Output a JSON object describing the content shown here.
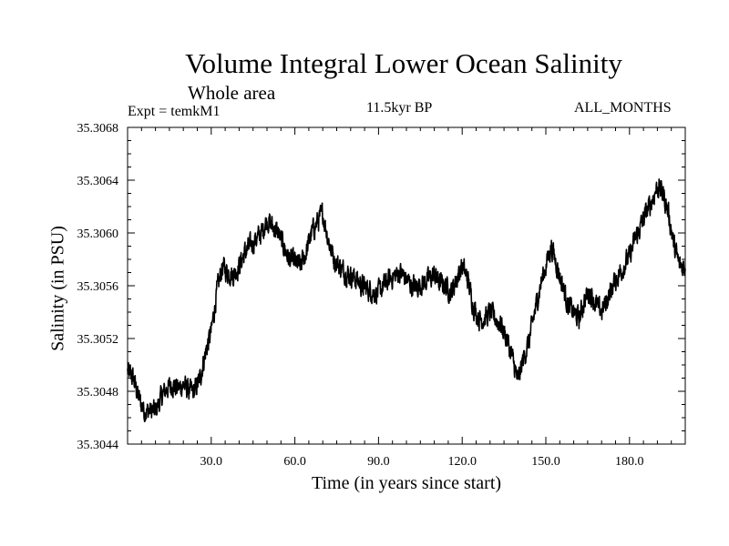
{
  "chart_data": {
    "type": "line",
    "title": "Volume Integral Lower Ocean Salinity",
    "subtitle": "Whole area",
    "experiment_label": "Expt = temkM1",
    "period_label": "11.5kyr BP",
    "months_label": "ALL_MONTHS",
    "xlabel": "Time (in years since start)",
    "ylabel": "Salinity (in PSU)",
    "xlim": [
      0,
      200
    ],
    "ylim": [
      35.3044,
      35.3068
    ],
    "x_ticks": [
      30,
      60,
      90,
      120,
      150,
      180
    ],
    "x_tick_labels": [
      "30.0",
      "60.0",
      "90.0",
      "120.0",
      "150.0",
      "180.0"
    ],
    "y_ticks": [
      35.3044,
      35.3048,
      35.3052,
      35.3056,
      35.306,
      35.3064,
      35.3068
    ],
    "y_tick_labels": [
      "35.3044",
      "35.3048",
      "35.3052",
      "35.3056",
      "35.3060",
      "35.3064",
      "35.3068"
    ],
    "grid": false,
    "noise_amplitude": 0.00014,
    "series": [
      {
        "name": "Lower ocean salinity",
        "x": [
          0,
          2,
          4,
          6,
          8,
          10,
          12,
          14,
          16,
          18,
          20,
          22,
          24,
          26,
          28,
          30,
          32,
          34,
          36,
          38,
          40,
          42,
          44,
          46,
          48,
          50,
          52,
          54,
          56,
          58,
          60,
          62,
          64,
          66,
          68,
          70,
          72,
          74,
          76,
          78,
          80,
          82,
          84,
          86,
          88,
          90,
          92,
          94,
          96,
          98,
          100,
          102,
          104,
          106,
          108,
          110,
          112,
          114,
          116,
          118,
          120,
          122,
          124,
          126,
          128,
          130,
          132,
          134,
          136,
          138,
          140,
          142,
          144,
          146,
          148,
          150,
          152,
          154,
          156,
          158,
          160,
          162,
          164,
          166,
          168,
          170,
          172,
          174,
          176,
          178,
          180,
          182,
          184,
          186,
          188,
          190,
          192,
          194,
          196,
          198,
          200
        ],
        "values": [
          35.30495,
          35.3049,
          35.30475,
          35.30465,
          35.30465,
          35.30465,
          35.30475,
          35.30482,
          35.30485,
          35.30482,
          35.30485,
          35.3048,
          35.3048,
          35.3049,
          35.3051,
          35.30525,
          35.30555,
          35.30575,
          35.3057,
          35.30568,
          35.30575,
          35.30585,
          35.3059,
          35.30595,
          35.306,
          35.3061,
          35.30605,
          35.306,
          35.3059,
          35.3058,
          35.30578,
          35.30575,
          35.30585,
          35.306,
          35.30608,
          35.30615,
          35.30595,
          35.3058,
          35.30575,
          35.3057,
          35.30568,
          35.30565,
          35.3056,
          35.30558,
          35.30555,
          35.30555,
          35.3056,
          35.30565,
          35.30568,
          35.3057,
          35.30565,
          35.3056,
          35.3056,
          35.30562,
          35.30565,
          35.30568,
          35.30562,
          35.3056,
          35.30555,
          35.30565,
          35.30575,
          35.30565,
          35.30545,
          35.30535,
          35.30535,
          35.3054,
          35.30535,
          35.3053,
          35.3052,
          35.30505,
          35.30488,
          35.30505,
          35.30518,
          35.3054,
          35.3056,
          35.30575,
          35.3059,
          35.30575,
          35.3056,
          35.30545,
          35.3054,
          35.30535,
          35.3055,
          35.30555,
          35.30545,
          35.3054,
          35.3055,
          35.3056,
          35.30568,
          35.30575,
          35.30582,
          35.30595,
          35.30605,
          35.30615,
          35.30625,
          35.30635,
          35.3063,
          35.30615,
          35.3059,
          35.30575,
          35.30575
        ]
      }
    ]
  }
}
